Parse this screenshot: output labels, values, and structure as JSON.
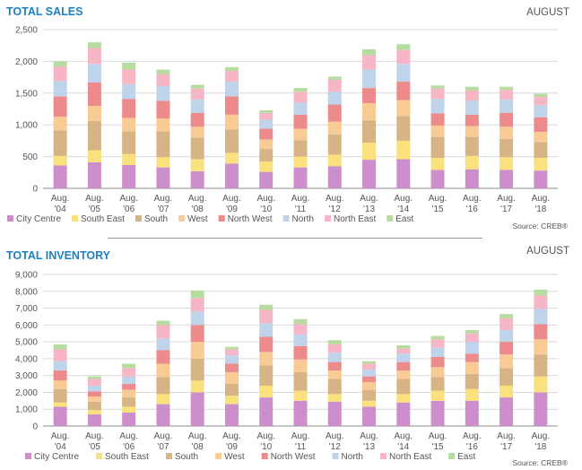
{
  "colors": {
    "title": "#1f7fc1",
    "series": [
      "#cc8fcc",
      "#f9e27d",
      "#d7b485",
      "#f8cb95",
      "#ed8a8b",
      "#bfd3ea",
      "#f7b6c6",
      "#b6dca0"
    ]
  },
  "source": "Source: CREB®",
  "chart_data": [
    {
      "type": "bar",
      "stacked": true,
      "title": "TOTAL SALES",
      "month": "AUGUST",
      "categories": [
        [
          "Aug.",
          "'04"
        ],
        [
          "Aug.",
          "'05"
        ],
        [
          "Aug.",
          "'06"
        ],
        [
          "Aug.",
          "'07"
        ],
        [
          "Aug.",
          "'08"
        ],
        [
          "Aug.",
          "'09"
        ],
        [
          "Aug.",
          "'10"
        ],
        [
          "Aug.",
          "'11"
        ],
        [
          "Aug.",
          "'12"
        ],
        [
          "Aug.",
          "'13"
        ],
        [
          "Aug.",
          "'14"
        ],
        [
          "Aug.",
          "'15"
        ],
        [
          "Aug.",
          "'16"
        ],
        [
          "Aug.",
          "'17"
        ],
        [
          "Aug.",
          "'18"
        ]
      ],
      "ylim": [
        0,
        2500
      ],
      "yticks": [
        0,
        500,
        1000,
        1500,
        2000,
        2500
      ],
      "ytick_labels": [
        "0",
        "500",
        "1,000",
        "1,500",
        "2,000",
        "2,500"
      ],
      "grid": true,
      "legend_position": "bottom",
      "series": [
        {
          "name": "City Centre",
          "values": [
            360,
            410,
            370,
            330,
            270,
            390,
            260,
            330,
            350,
            450,
            460,
            290,
            300,
            290,
            280
          ]
        },
        {
          "name": "South East",
          "values": [
            150,
            190,
            170,
            160,
            190,
            170,
            160,
            170,
            180,
            270,
            290,
            190,
            210,
            200,
            200
          ]
        },
        {
          "name": "South",
          "values": [
            400,
            460,
            360,
            410,
            340,
            370,
            200,
            260,
            320,
            350,
            390,
            330,
            300,
            290,
            250
          ]
        },
        {
          "name": "West",
          "values": [
            220,
            240,
            210,
            200,
            170,
            230,
            150,
            180,
            200,
            270,
            250,
            180,
            170,
            190,
            160
          ]
        },
        {
          "name": "North West",
          "values": [
            320,
            370,
            300,
            280,
            220,
            290,
            170,
            220,
            270,
            240,
            290,
            190,
            180,
            220,
            230
          ]
        },
        {
          "name": "North",
          "values": [
            240,
            290,
            230,
            230,
            210,
            230,
            140,
            190,
            200,
            290,
            280,
            230,
            220,
            210,
            190
          ]
        },
        {
          "name": "North East",
          "values": [
            230,
            250,
            230,
            190,
            170,
            170,
            110,
            170,
            190,
            230,
            220,
            160,
            160,
            150,
            130
          ]
        },
        {
          "name": "East",
          "values": [
            80,
            90,
            110,
            70,
            60,
            60,
            40,
            60,
            50,
            90,
            90,
            50,
            60,
            50,
            50
          ]
        }
      ]
    },
    {
      "type": "bar",
      "stacked": true,
      "title": "TOTAL INVENTORY",
      "month": "AUGUST",
      "categories": [
        [
          "Aug.",
          "'04"
        ],
        [
          "Aug.",
          "'05"
        ],
        [
          "Aug.",
          "'06"
        ],
        [
          "Aug.",
          "'07"
        ],
        [
          "Aug.",
          "'08"
        ],
        [
          "Aug.",
          "'09"
        ],
        [
          "Aug.",
          "'10"
        ],
        [
          "Aug.",
          "'11"
        ],
        [
          "Aug.",
          "'12"
        ],
        [
          "Aug.",
          "'13"
        ],
        [
          "Aug.",
          "'14"
        ],
        [
          "Aug.",
          "'15"
        ],
        [
          "Aug.",
          "'16"
        ],
        [
          "Aug.",
          "'17"
        ],
        [
          "Aug.",
          "'18"
        ]
      ],
      "ylim": [
        0,
        9000
      ],
      "yticks": [
        0,
        1000,
        2000,
        3000,
        4000,
        5000,
        6000,
        7000,
        8000,
        9000
      ],
      "ytick_labels": [
        "0",
        "1,000",
        "2,000",
        "3,000",
        "4,000",
        "5,000",
        "6,000",
        "7,000",
        "8,000",
        "9,000"
      ],
      "grid": true,
      "legend_position": "bottom",
      "series": [
        {
          "name": "City Centre",
          "values": [
            1150,
            700,
            800,
            1300,
            2000,
            1300,
            1700,
            1500,
            1450,
            1150,
            1400,
            1500,
            1500,
            1700,
            2000
          ]
        },
        {
          "name": "South East",
          "values": [
            250,
            250,
            350,
            600,
            700,
            500,
            700,
            600,
            450,
            350,
            500,
            600,
            700,
            700,
            950
          ]
        },
        {
          "name": "South",
          "values": [
            800,
            500,
            550,
            1000,
            1300,
            700,
            1200,
            1100,
            900,
            650,
            900,
            800,
            900,
            1050,
            1300
          ]
        },
        {
          "name": "West",
          "values": [
            500,
            300,
            450,
            800,
            1000,
            700,
            800,
            750,
            500,
            450,
            500,
            600,
            700,
            800,
            900
          ]
        },
        {
          "name": "North West",
          "values": [
            600,
            300,
            350,
            800,
            1000,
            500,
            900,
            800,
            500,
            350,
            500,
            600,
            500,
            750,
            900
          ]
        },
        {
          "name": "North",
          "values": [
            550,
            350,
            450,
            700,
            800,
            500,
            800,
            700,
            550,
            400,
            500,
            550,
            700,
            700,
            900
          ]
        },
        {
          "name": "North East",
          "values": [
            700,
            400,
            500,
            800,
            800,
            350,
            800,
            600,
            500,
            350,
            300,
            500,
            500,
            700,
            800
          ]
        },
        {
          "name": "East",
          "values": [
            300,
            150,
            250,
            250,
            450,
            150,
            300,
            300,
            250,
            150,
            200,
            200,
            200,
            250,
            350
          ]
        }
      ]
    }
  ]
}
